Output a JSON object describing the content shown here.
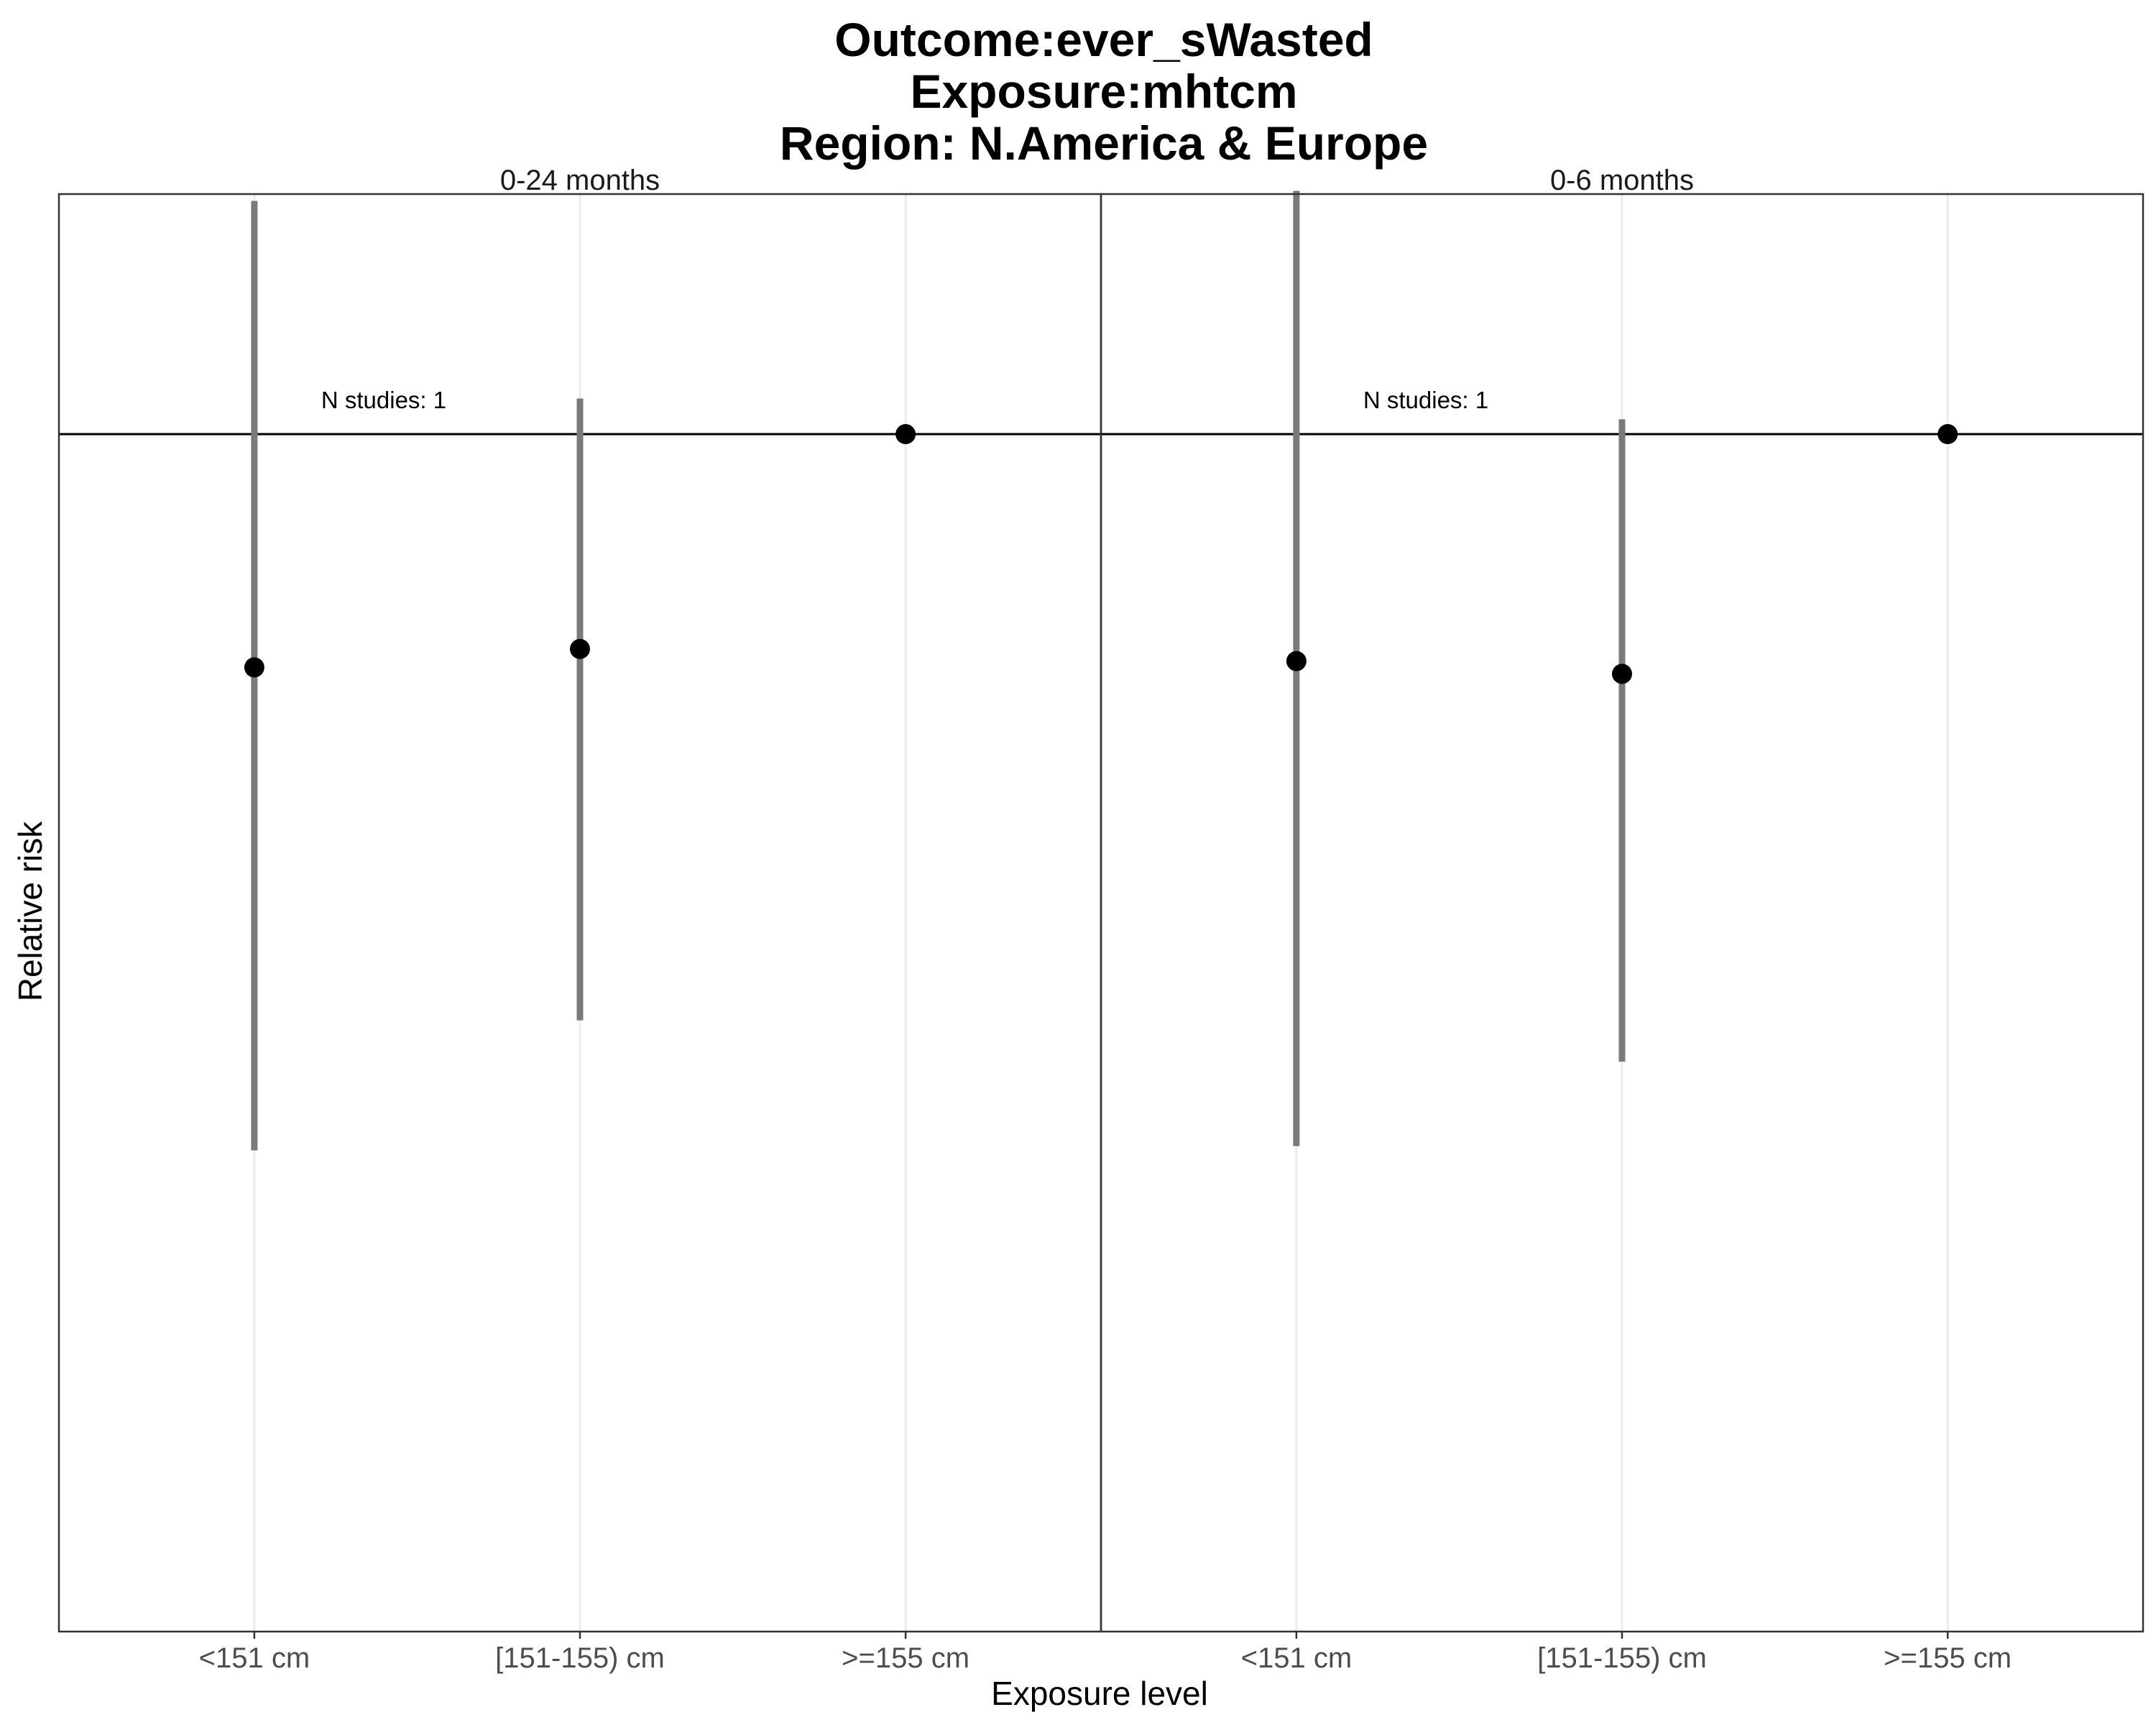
{
  "chart_data": {
    "type": "scatter",
    "title_lines": [
      "Outcome:ever_sWasted",
      "Exposure:mhtcm",
      "Region: N.America & Europe"
    ],
    "xlabel": "Exposure level",
    "ylabel": "Relative risk",
    "categories": [
      "<151 cm",
      "[151-155) cm",
      ">=155 cm"
    ],
    "reference_value": 1,
    "ylim": [
      0.05,
      3.1
    ],
    "y_scale": "log",
    "y_ticks_shown": false,
    "grid": "vertical-only",
    "panels": [
      {
        "label": "0-24 months",
        "annotation": "N studies: 1",
        "points": [
          {
            "category": "<151 cm",
            "rr": 0.4,
            "lower": 0.06,
            "upper": 2.5
          },
          {
            "category": "[151-155) cm",
            "rr": 0.43,
            "lower": 0.1,
            "upper": 1.15
          },
          {
            "category": ">=155 cm",
            "rr": 1.0
          }
        ]
      },
      {
        "label": "0-6 months",
        "annotation": "N studies: 1",
        "points": [
          {
            "category": "<151 cm",
            "rr": 0.41,
            "lower": 0.061,
            "upper": 2.6
          },
          {
            "category": "[151-155) cm",
            "rr": 0.39,
            "lower": 0.085,
            "upper": 1.06
          },
          {
            "category": ">=155 cm",
            "rr": 1.0
          }
        ]
      }
    ]
  }
}
